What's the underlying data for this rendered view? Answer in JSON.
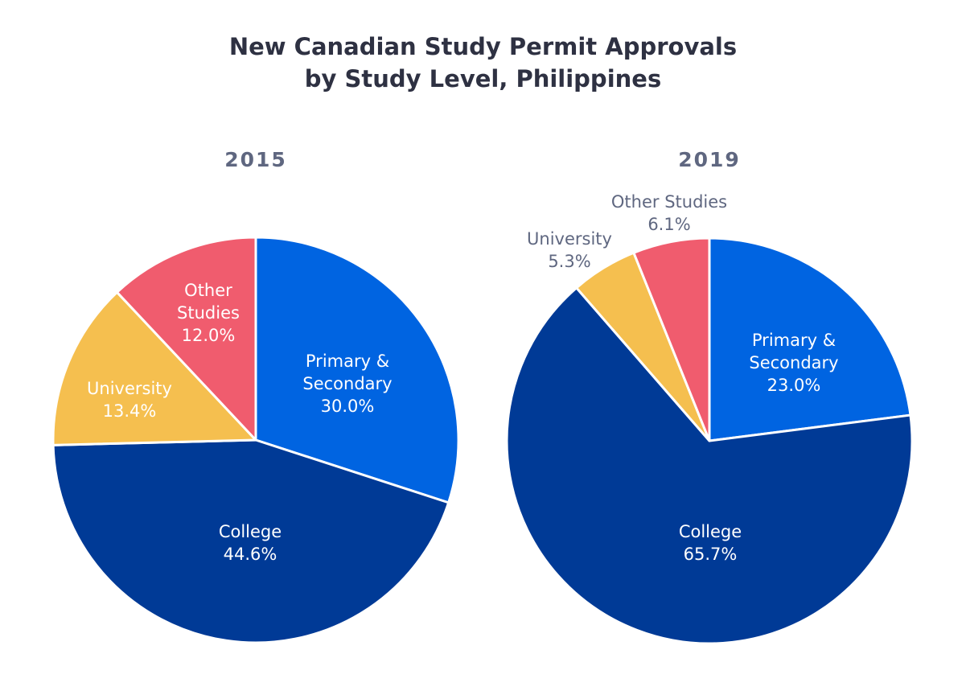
{
  "chart_data": [
    {
      "type": "pie",
      "title": "New Canadian Study Permit Approvals by Study Level, Philippines",
      "subtitle": "2015",
      "categories": [
        "Primary & Secondary",
        "College",
        "University",
        "Other Studies"
      ],
      "values": [
        30.0,
        44.6,
        13.4,
        12.0
      ],
      "value_labels": [
        "30.0%",
        "44.6%",
        "13.4%",
        "12.0%"
      ],
      "label_lines": [
        [
          "Primary &",
          "Secondary"
        ],
        [
          "College"
        ],
        [
          "University"
        ],
        [
          "Other",
          "Studies"
        ]
      ],
      "colors": [
        "#0064E1",
        "#003A96",
        "#F5BF4F",
        "#F05C6E"
      ]
    },
    {
      "type": "pie",
      "title": "New Canadian Study Permit Approvals by Study Level, Philippines",
      "subtitle": "2019",
      "categories": [
        "Primary & Secondary",
        "College",
        "University",
        "Other Studies"
      ],
      "values": [
        23.0,
        65.7,
        5.3,
        6.1
      ],
      "value_labels": [
        "23.0%",
        "65.7%",
        "5.3%",
        "6.1%"
      ],
      "label_lines": [
        [
          "Primary &",
          "Secondary"
        ],
        [
          "College"
        ],
        [
          "University"
        ],
        [
          "Other Studies"
        ]
      ],
      "colors": [
        "#0064E1",
        "#003A96",
        "#F5BF4F",
        "#F05C6E"
      ]
    }
  ],
  "title_lines": [
    "New Canadian Study Permit Approvals",
    "by Study Level, Philippines"
  ],
  "label_colors": {
    "inside": "#FFFFFF",
    "outside": "#5F6780"
  }
}
